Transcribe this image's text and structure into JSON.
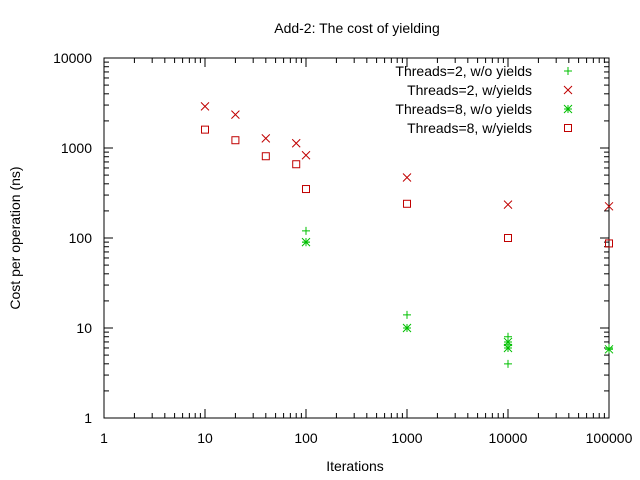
{
  "chart_data": {
    "type": "scatter",
    "title": "Add-2: The cost of yielding",
    "xlabel": "Iterations",
    "ylabel": "Cost per operation (ns)",
    "x_scale": "log",
    "y_scale": "log",
    "xlim": [
      1,
      100000
    ],
    "ylim": [
      1,
      10000
    ],
    "x_ticks": [
      "1",
      "10",
      "100",
      "1000",
      "10000",
      "100000"
    ],
    "y_ticks": [
      "1",
      "10",
      "100",
      "1000",
      "10000"
    ],
    "grid": false,
    "legend_position": "top-right",
    "series": [
      {
        "name": "Threads=2, w/o yields",
        "marker": "plus",
        "color": "#00c000",
        "points": [
          [
            100,
            120
          ],
          [
            100,
            90
          ],
          [
            1000,
            14
          ],
          [
            1000,
            10
          ],
          [
            10000,
            8
          ],
          [
            10000,
            6.5
          ],
          [
            10000,
            4
          ],
          [
            100000,
            6
          ]
        ]
      },
      {
        "name": "Threads=2, w/yields",
        "marker": "cross",
        "color": "#c00000",
        "points": [
          [
            10,
            2900
          ],
          [
            20,
            2350
          ],
          [
            40,
            1280
          ],
          [
            80,
            1130
          ],
          [
            100,
            830
          ],
          [
            1000,
            470
          ],
          [
            10000,
            235
          ],
          [
            100000,
            225
          ]
        ]
      },
      {
        "name": "Threads=8, w/o yields",
        "marker": "star",
        "color": "#00c000",
        "points": [
          [
            100,
            90
          ],
          [
            1000,
            10
          ],
          [
            10000,
            7
          ],
          [
            10000,
            6
          ],
          [
            100000,
            5.8
          ]
        ]
      },
      {
        "name": "Threads=8, w/yields",
        "marker": "square",
        "color": "#c00000",
        "points": [
          [
            10,
            1600
          ],
          [
            20,
            1220
          ],
          [
            40,
            810
          ],
          [
            80,
            660
          ],
          [
            100,
            350
          ],
          [
            1000,
            240
          ],
          [
            10000,
            100
          ],
          [
            100000,
            87
          ]
        ]
      }
    ]
  }
}
